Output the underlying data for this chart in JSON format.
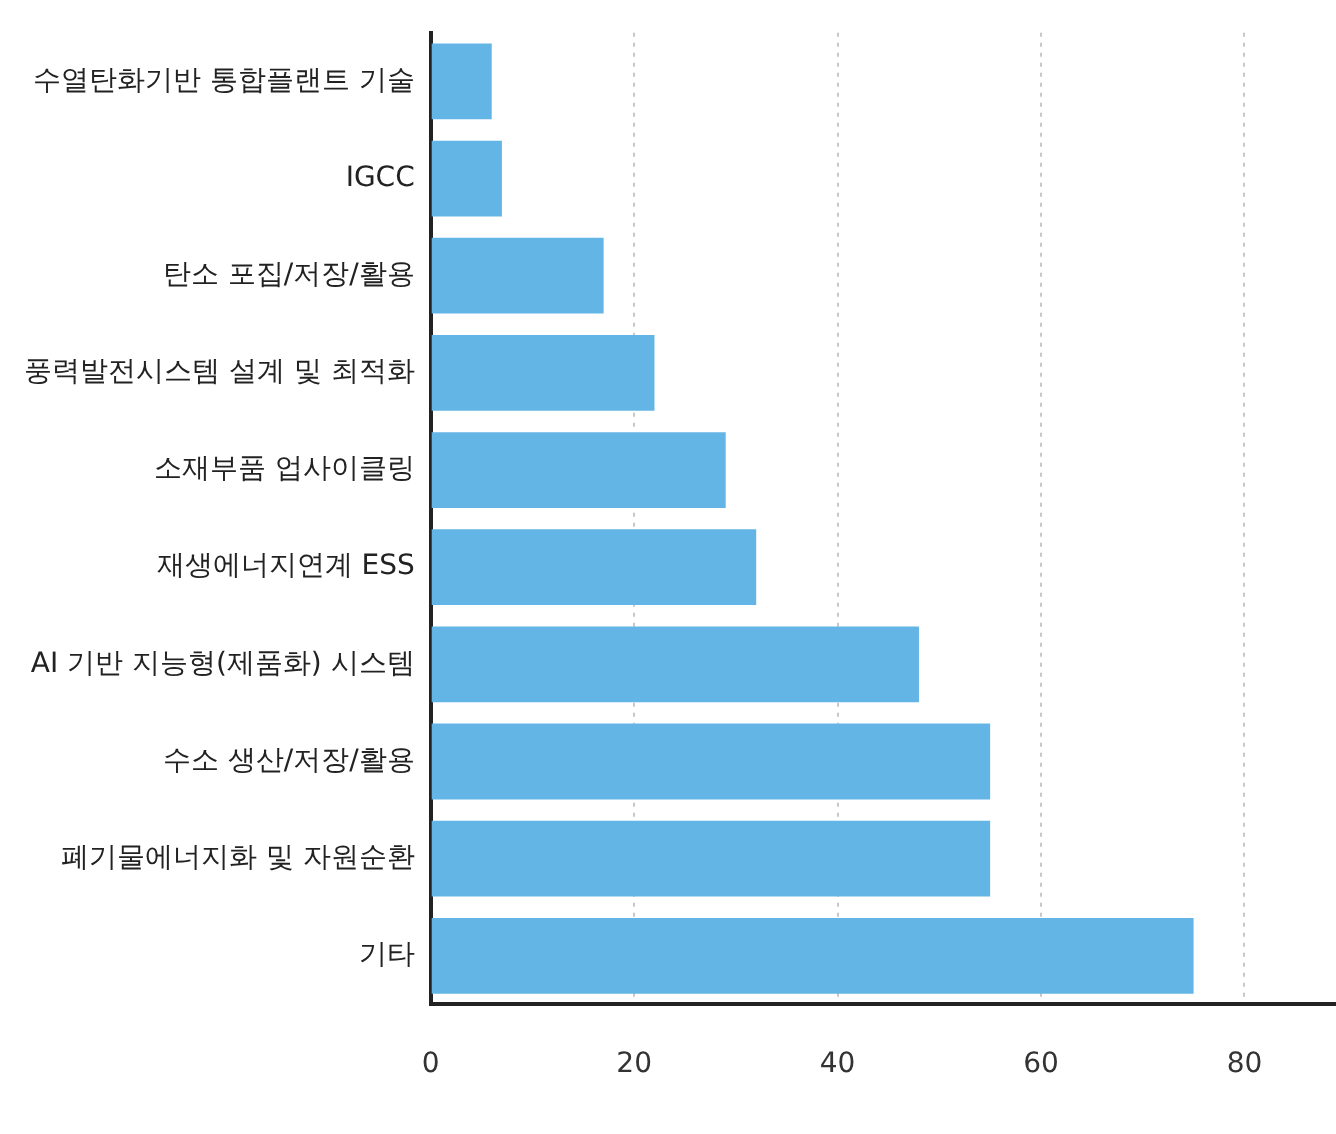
{
  "chart_data": {
    "type": "bar",
    "orientation": "horizontal",
    "categories": [
      "수열탄화기반 통합플랜트 기술",
      "IGCC",
      "탄소 포집/저장/활용",
      "풍력발전시스템 설계 및 최적화",
      "소재부품 업사이클링",
      "재생에너지연계 ESS",
      "AI 기반 지능형(제품화) 시스템",
      "수소 생산/저장/활용",
      "폐기물에너지화 및 자원순환",
      "기타"
    ],
    "values": [
      6,
      7,
      17,
      22,
      29,
      32,
      48,
      55,
      55,
      75
    ],
    "color": "#62b5e5",
    "xlim": [
      0,
      89
    ],
    "xticks": [
      0,
      20,
      40,
      60,
      80
    ],
    "grid": "x",
    "line_style": "dotted"
  }
}
